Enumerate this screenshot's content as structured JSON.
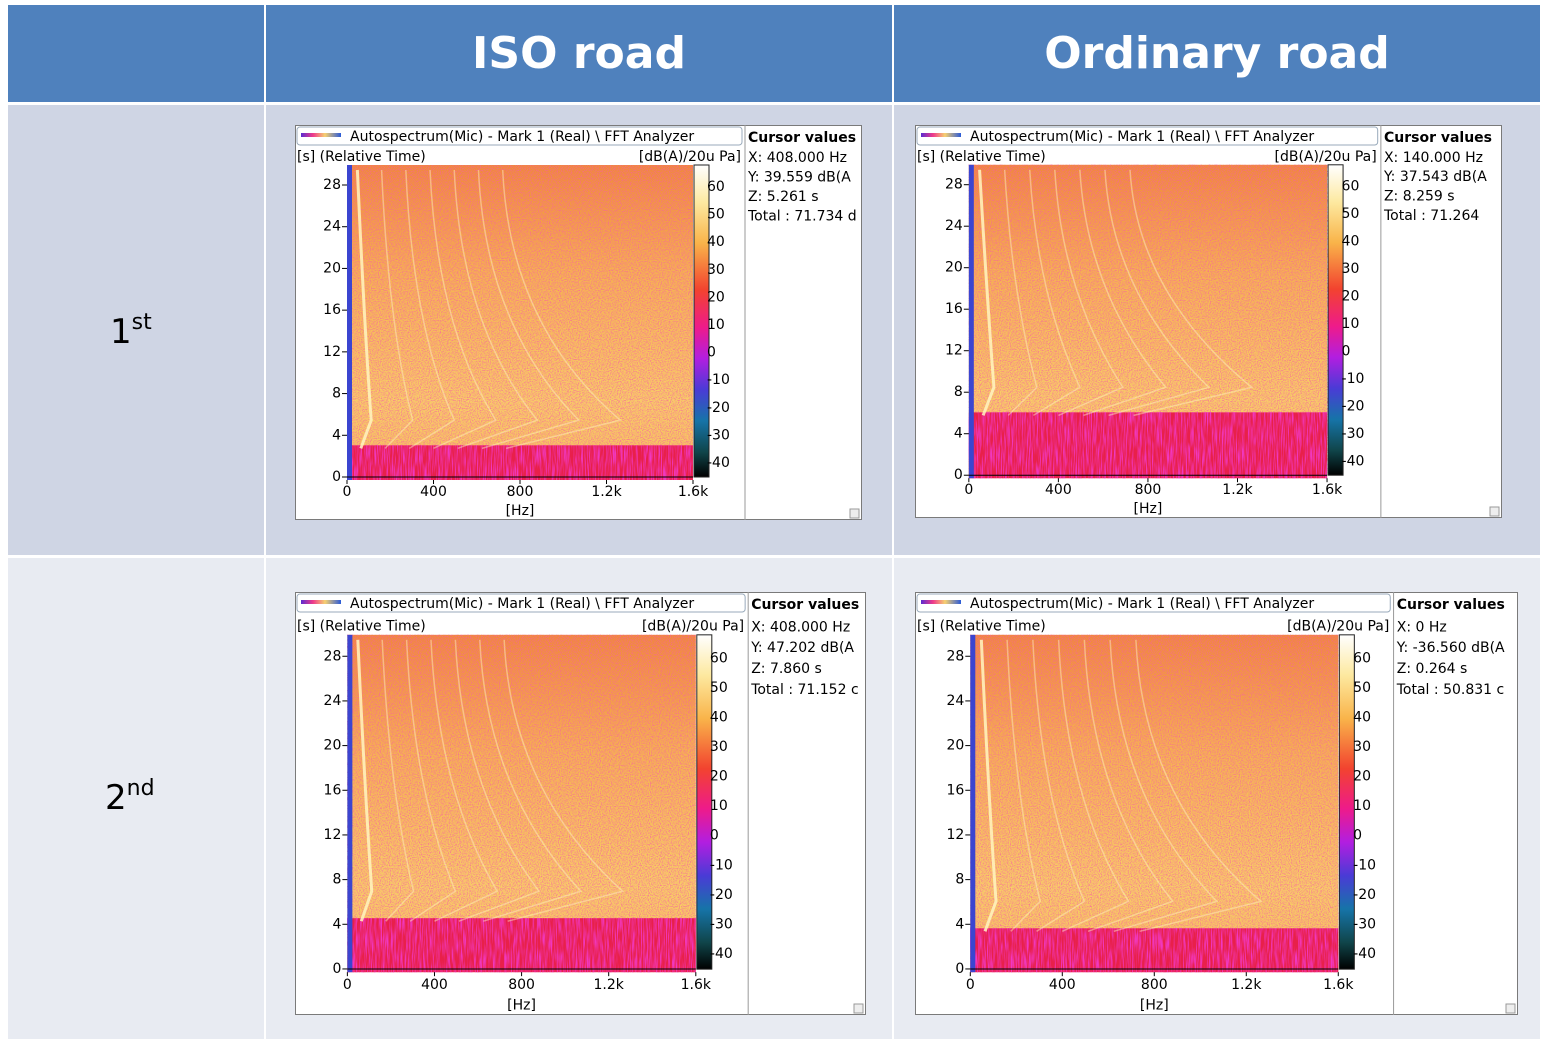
{
  "table": {
    "header": {
      "col1": "ISO road",
      "col2": "Ordinary road"
    },
    "rows": [
      {
        "label": {
          "base": "1",
          "sup": "st"
        },
        "cells": [
          {
            "title": "Autospectrum(Mic) - Mark 1 (Real) \\  FFT Analyzer",
            "y_unit": "[s] (Relative Time)",
            "z_unit": "[dB(A)/20u Pa]",
            "x_label": "[Hz]",
            "cursor_title": "Cursor values",
            "cursor_lines": [
              "X: 408.000 Hz",
              "Y: 39.559 dB(A",
              "Z: 5.261 s",
              "Total : 71.734 d"
            ],
            "yticks": [
              0,
              4,
              8,
              12,
              16,
              20,
              24,
              28
            ],
            "xticks": [
              0,
              400,
              800,
              "1.2k",
              "1.6k"
            ],
            "colorbar_ticks": [
              60,
              50,
              40,
              30,
              20,
              10,
              0,
              -10,
              -20,
              -30,
              -40
            ]
          },
          {
            "title": "Autospectrum(Mic) - Mark 1 (Real) \\  FFT Analyzer",
            "y_unit": "[s] (Relative Time)",
            "z_unit": "[dB(A)/20u Pa]",
            "x_label": "[Hz]",
            "cursor_title": "Cursor values",
            "cursor_lines": [
              "X: 140.000 Hz",
              "Y: 37.543 dB(A",
              "Z: 8.259 s",
              "Total : 71.264"
            ],
            "yticks": [
              0,
              4,
              8,
              12,
              16,
              20,
              24,
              28
            ],
            "xticks": [
              0,
              400,
              800,
              "1.2k",
              "1.6k"
            ],
            "colorbar_ticks": [
              60,
              50,
              40,
              30,
              20,
              10,
              0,
              -10,
              -20,
              -30,
              -40
            ]
          }
        ]
      },
      {
        "label": {
          "base": "2",
          "sup": "nd"
        },
        "cells": [
          {
            "title": "Autospectrum(Mic) - Mark 1 (Real) \\  FFT Analyzer",
            "y_unit": "[s] (Relative Time)",
            "z_unit": "[dB(A)/20u Pa]",
            "x_label": "[Hz]",
            "cursor_title": "Cursor values",
            "cursor_lines": [
              "X: 408.000 Hz",
              "Y: 47.202 dB(A",
              "Z: 7.860 s",
              "Total : 71.152 c"
            ],
            "yticks": [
              0,
              4,
              8,
              12,
              16,
              20,
              24,
              28
            ],
            "xticks": [
              0,
              400,
              800,
              "1.2k",
              "1.6k"
            ],
            "colorbar_ticks": [
              60,
              50,
              40,
              30,
              20,
              10,
              0,
              -10,
              -20,
              -30,
              -40
            ]
          },
          {
            "title": "Autospectrum(Mic) - Mark 1 (Real) \\  FFT Analyzer",
            "y_unit": "[s] (Relative Time)",
            "z_unit": "[dB(A)/20u Pa]",
            "x_label": "[Hz]",
            "cursor_title": "Cursor values",
            "cursor_lines": [
              "X: 0 Hz",
              "Y: -36.560 dB(A",
              "Z: 0.264 s",
              "Total : 50.831 c"
            ],
            "yticks": [
              0,
              4,
              8,
              12,
              16,
              20,
              24,
              28
            ],
            "xticks": [
              0,
              400,
              800,
              "1.2k",
              "1.6k"
            ],
            "colorbar_ticks": [
              60,
              50,
              40,
              30,
              20,
              10,
              0,
              -10,
              -20,
              -30,
              -40
            ]
          }
        ]
      }
    ]
  }
}
